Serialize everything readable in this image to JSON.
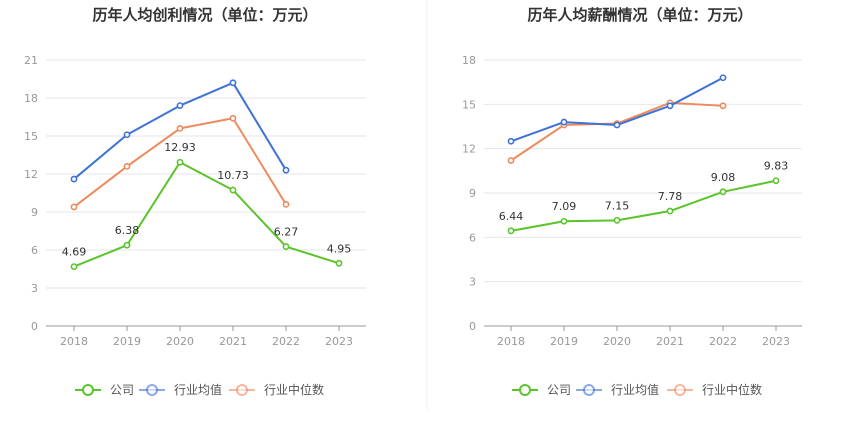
{
  "chart_data": [
    {
      "type": "line",
      "title": "历年人均创利情况（单位：万元）",
      "categories": [
        "2018",
        "2019",
        "2020",
        "2021",
        "2022",
        "2023"
      ],
      "ylim": [
        0,
        21
      ],
      "yticks": [
        "0",
        "3",
        "6",
        "9",
        "12",
        "15",
        "18",
        "21"
      ],
      "grid": true,
      "legend": "bottom",
      "series": [
        {
          "name": "公司",
          "color": "#5ac42a",
          "values": [
            4.69,
            6.38,
            12.93,
            10.73,
            6.27,
            4.95
          ],
          "labels": [
            "4.69",
            "6.38",
            "12.93",
            "10.73",
            "6.27",
            "4.95"
          ]
        },
        {
          "name": "行业均值",
          "color": "#3d72d6",
          "values": [
            11.6,
            15.1,
            17.4,
            19.2,
            12.3,
            null
          ]
        },
        {
          "name": "行业中位数",
          "color": "#ef8a5e",
          "values": [
            9.4,
            12.6,
            15.6,
            16.4,
            9.6,
            null
          ]
        }
      ]
    },
    {
      "type": "line",
      "title": "历年人均薪酬情况（单位：万元）",
      "categories": [
        "2018",
        "2019",
        "2020",
        "2021",
        "2022",
        "2023"
      ],
      "ylim": [
        0,
        18
      ],
      "yticks": [
        "0",
        "3",
        "6",
        "9",
        "12",
        "15",
        "18"
      ],
      "grid": true,
      "legend": "bottom",
      "series": [
        {
          "name": "公司",
          "color": "#5ac42a",
          "values": [
            6.44,
            7.09,
            7.15,
            7.78,
            9.08,
            9.83
          ],
          "labels": [
            "6.44",
            "7.09",
            "7.15",
            "7.78",
            "9.08",
            "9.83"
          ]
        },
        {
          "name": "行业均值",
          "color": "#3d72d6",
          "values": [
            12.5,
            13.8,
            13.6,
            14.9,
            16.8,
            null
          ]
        },
        {
          "name": "行业中位数",
          "color": "#ef8a5e",
          "values": [
            11.2,
            13.6,
            13.7,
            15.1,
            14.9,
            null
          ]
        }
      ]
    }
  ]
}
